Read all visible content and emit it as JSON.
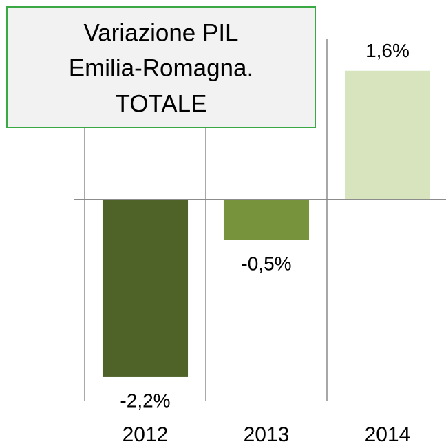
{
  "chart_data": {
    "type": "bar",
    "title": [
      "Variazione PIL",
      "Emilia-Romagna.",
      "TOTALE"
    ],
    "categories": [
      "2012",
      "2013",
      "2014"
    ],
    "values": [
      -2.2,
      -0.5,
      1.6
    ],
    "value_labels": [
      "-2,2%",
      "-0,5%",
      "1,6%"
    ],
    "colors": [
      "#4f6228",
      "#77933c",
      "#d7e4bd"
    ],
    "ylim": [
      -2.5,
      2.0
    ]
  }
}
